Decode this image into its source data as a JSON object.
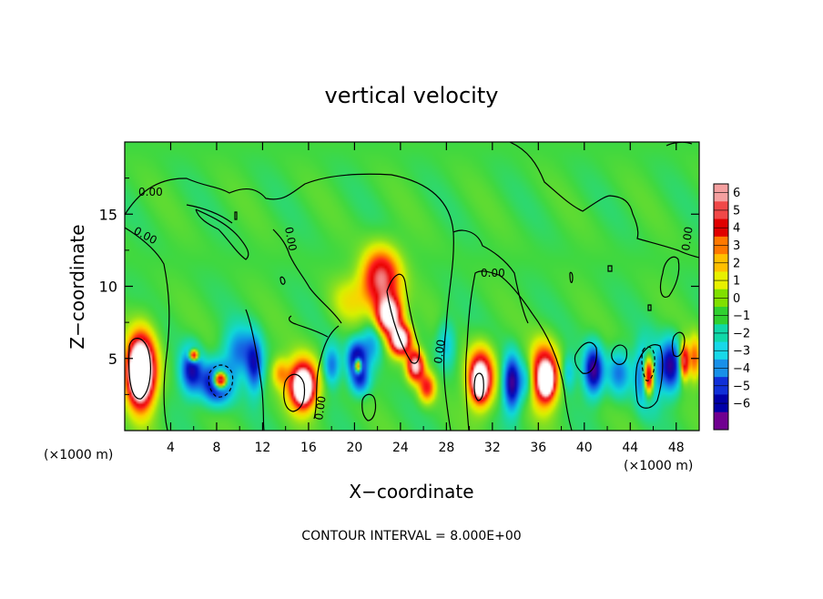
{
  "chart_data": {
    "type": "heatmap",
    "title": "vertical velocity",
    "xlabel": "X−coordinate",
    "ylabel": "Z−coordinate",
    "x_unit": "(×1000 m)",
    "y_unit": "(×1000 m)",
    "xlim": [
      0,
      50
    ],
    "ylim": [
      0,
      20
    ],
    "x_ticks": [
      4,
      8,
      12,
      16,
      20,
      24,
      28,
      32,
      36,
      40,
      44,
      48
    ],
    "y_ticks": [
      5,
      10,
      15
    ],
    "footer": "CONTOUR INTERVAL = 8.000E+00",
    "contour_labels": [
      "0.00",
      "0.00",
      "0.00",
      "0.00",
      "0.00",
      "0.00",
      "0.00"
    ],
    "colorbar": {
      "levels": [
        6,
        5,
        4,
        3,
        2,
        1,
        0,
        -1,
        -2,
        -3,
        -4,
        -5,
        -6
      ],
      "colors": [
        "#f5a0a0",
        "#f04848",
        "#e00000",
        "#ff7800",
        "#ffc000",
        "#e8f000",
        "#80e000",
        "#30d030",
        "#10d8a8",
        "#18d8e8",
        "#1890e8",
        "#1030d8",
        "#0000a8",
        "#700090"
      ]
    },
    "features": [
      {
        "x": 1.5,
        "z": 4.2,
        "v": 7.5,
        "sx": 1.3,
        "sz": 2.6
      },
      {
        "x": 1.3,
        "z": 4.0,
        "v": 14,
        "sx": 0.8,
        "sz": 1.6
      },
      {
        "x": 5.8,
        "z": 4.2,
        "v": -5,
        "sx": 0.9,
        "sz": 1.5
      },
      {
        "x": 6.0,
        "z": 5.2,
        "v": 8,
        "sx": 0.4,
        "sz": 0.4
      },
      {
        "x": 8.0,
        "z": 3.3,
        "v": -6.5,
        "sx": 1.3,
        "sz": 1.3
      },
      {
        "x": 8.3,
        "z": 3.5,
        "v": 12,
        "sx": 0.6,
        "sz": 0.6
      },
      {
        "x": 10.0,
        "z": 5.5,
        "v": -3,
        "sx": 1.3,
        "sz": 1.6
      },
      {
        "x": 11.3,
        "z": 4.5,
        "v": -4,
        "sx": 0.7,
        "sz": 1.8
      },
      {
        "x": 15.5,
        "z": 3.2,
        "v": 7.5,
        "sx": 1.3,
        "sz": 1.7
      },
      {
        "x": 15.5,
        "z": 3.0,
        "v": 12,
        "sx": 0.6,
        "sz": 0.9
      },
      {
        "x": 13.5,
        "z": 4.0,
        "v": 2.5,
        "sx": 0.7,
        "sz": 1.0
      },
      {
        "x": 18.0,
        "z": 4.5,
        "v": -3,
        "sx": 0.7,
        "sz": 1.3
      },
      {
        "x": 20.2,
        "z": 5.0,
        "v": -5.5,
        "sx": 0.8,
        "sz": 1.2
      },
      {
        "x": 20.5,
        "z": 3.5,
        "v": -3.5,
        "sx": 0.8,
        "sz": 1.0
      },
      {
        "x": 20.3,
        "z": 4.5,
        "v": 9,
        "sx": 0.3,
        "sz": 0.5
      },
      {
        "x": 21.5,
        "z": 6.0,
        "v": -2.5,
        "sx": 0.9,
        "sz": 1.5
      },
      {
        "x": 22.3,
        "z": 10.5,
        "v": 6.5,
        "sx": 1.6,
        "sz": 2.0
      },
      {
        "x": 23.0,
        "z": 8.0,
        "v": 10,
        "sx": 1.0,
        "sz": 1.2
      },
      {
        "x": 24.0,
        "z": 6.3,
        "v": 10,
        "sx": 0.9,
        "sz": 1.0
      },
      {
        "x": 25.3,
        "z": 4.5,
        "v": 8,
        "sx": 0.7,
        "sz": 1.0
      },
      {
        "x": 26.3,
        "z": 3.0,
        "v": 4.5,
        "sx": 0.7,
        "sz": 1.0
      },
      {
        "x": 19.5,
        "z": 9.0,
        "v": 1.5,
        "sx": 1.6,
        "sz": 1.6
      },
      {
        "x": 28.0,
        "z": 6.0,
        "v": -2.0,
        "sx": 0.8,
        "sz": 1.6
      },
      {
        "x": 31.0,
        "z": 3.7,
        "v": 7.5,
        "sx": 1.1,
        "sz": 1.9
      },
      {
        "x": 30.9,
        "z": 3.4,
        "v": 12,
        "sx": 0.5,
        "sz": 0.9
      },
      {
        "x": 33.7,
        "z": 3.3,
        "v": -6,
        "sx": 0.7,
        "sz": 1.8
      },
      {
        "x": 35.0,
        "z": 3.5,
        "v": -2.5,
        "sx": 0.7,
        "sz": 1.4
      },
      {
        "x": 36.5,
        "z": 3.8,
        "v": 7.5,
        "sx": 1.2,
        "sz": 2.0
      },
      {
        "x": 36.7,
        "z": 3.5,
        "v": 12,
        "sx": 0.5,
        "sz": 0.9
      },
      {
        "x": 38.6,
        "z": 4.0,
        "v": -2.0,
        "sx": 0.6,
        "sz": 1.2
      },
      {
        "x": 40.8,
        "z": 4.2,
        "v": -6,
        "sx": 0.8,
        "sz": 1.6
      },
      {
        "x": 43.0,
        "z": 4.0,
        "v": -3,
        "sx": 1.0,
        "sz": 1.5
      },
      {
        "x": 45.5,
        "z": 3.8,
        "v": -6.5,
        "sx": 0.9,
        "sz": 1.9
      },
      {
        "x": 45.6,
        "z": 3.8,
        "v": 12,
        "sx": 0.5,
        "sz": 1.4
      },
      {
        "x": 47.5,
        "z": 4.5,
        "v": -5.5,
        "sx": 0.9,
        "sz": 1.7
      },
      {
        "x": 48.7,
        "z": 4.8,
        "v": 6.5,
        "sx": 0.4,
        "sz": 1.2
      },
      {
        "x": 49.6,
        "z": 5.0,
        "v": 3.5,
        "sx": 0.5,
        "sz": 1.5
      }
    ]
  }
}
